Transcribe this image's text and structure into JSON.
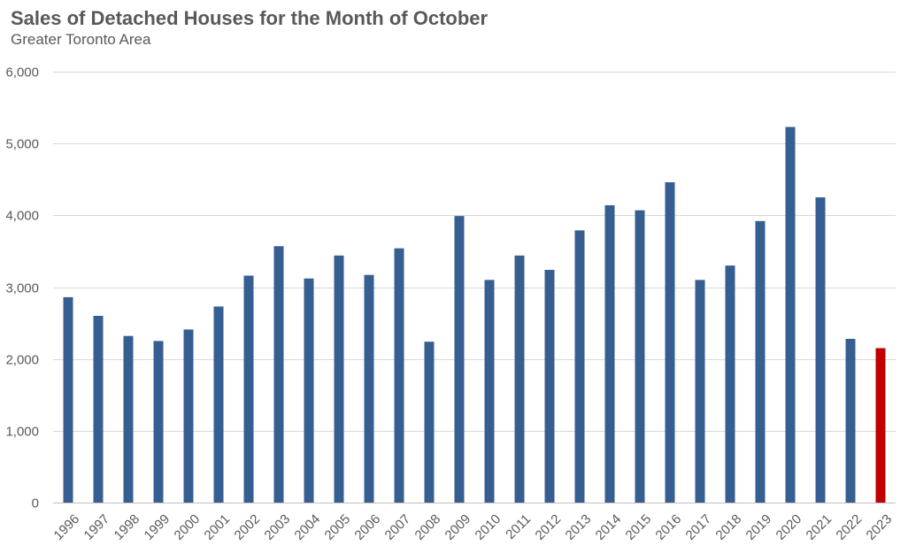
{
  "chart_data": {
    "type": "bar",
    "title": "Sales of Detached Houses for the Month of October",
    "subtitle": "Greater Toronto Area",
    "xlabel": "",
    "ylabel": "",
    "ylim": [
      0,
      6000
    ],
    "yticks": [
      0,
      1000,
      2000,
      3000,
      4000,
      5000,
      6000
    ],
    "ytick_labels": [
      "0",
      "1,000",
      "2,000",
      "3,000",
      "4,000",
      "5,000",
      "6,000"
    ],
    "grid": true,
    "categories": [
      "1996",
      "1997",
      "1998",
      "1999",
      "2000",
      "2001",
      "2002",
      "2003",
      "2004",
      "2005",
      "2006",
      "2007",
      "2008",
      "2009",
      "2010",
      "2011",
      "2012",
      "2013",
      "2014",
      "2015",
      "2016",
      "2017",
      "2018",
      "2019",
      "2020",
      "2021",
      "2022",
      "2023"
    ],
    "values": [
      2860,
      2600,
      2320,
      2250,
      2410,
      2730,
      3160,
      3570,
      3120,
      3440,
      3170,
      3540,
      2240,
      3990,
      3100,
      3440,
      3240,
      3790,
      4140,
      4070,
      4460,
      3100,
      3300,
      3920,
      5230,
      4250,
      2280,
      2150
    ],
    "bar_color": "#375E91",
    "highlight_color": "#C00000",
    "highlight_category": "2023"
  }
}
